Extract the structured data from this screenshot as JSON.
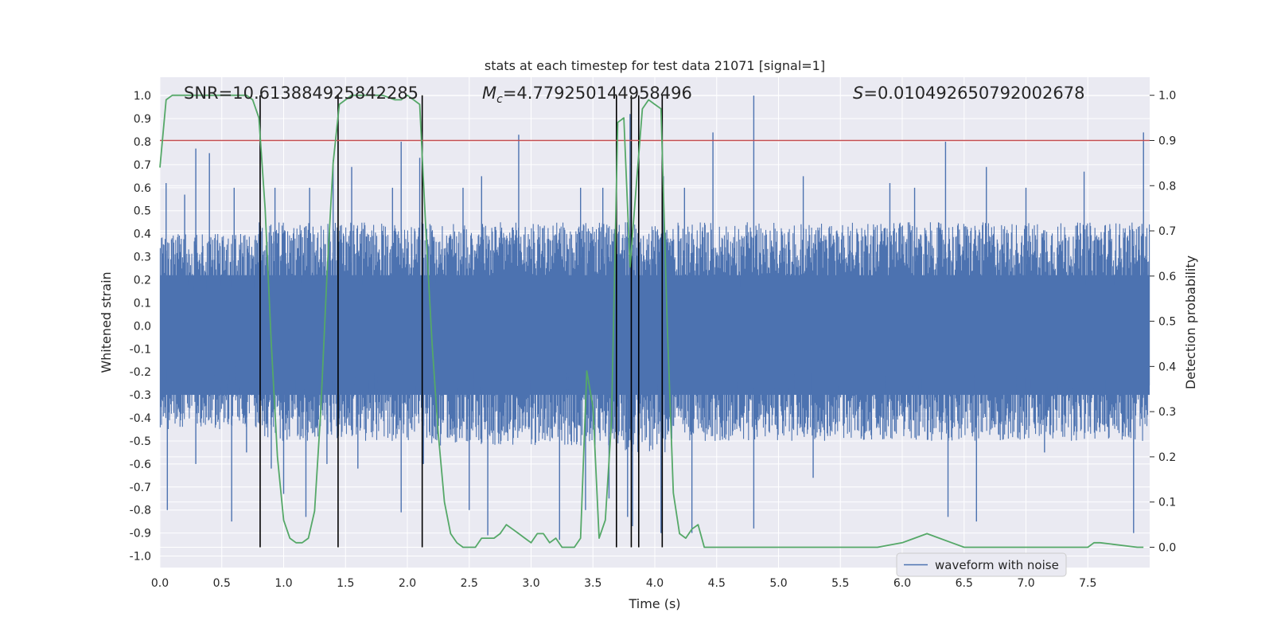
{
  "chart_data": {
    "type": "line",
    "title": "stats at each timestep for test data 21071 [signal=1]",
    "xlabel": "Time (s)",
    "ylabel": "Whitened strain",
    "ylabel_right": "Detection probability",
    "xlim": [
      0.0,
      8.0
    ],
    "ylim": [
      -1.05,
      1.08
    ],
    "ylim_right": [
      -0.045,
      1.04
    ],
    "x_ticks": [
      "0.0",
      "0.5",
      "1.0",
      "1.5",
      "2.0",
      "2.5",
      "3.0",
      "3.5",
      "4.0",
      "4.5",
      "5.0",
      "5.5",
      "6.0",
      "6.5",
      "7.0",
      "7.5"
    ],
    "y_ticks": [
      "1.0",
      "0.9",
      "0.8",
      "0.7",
      "0.6",
      "0.5",
      "0.4",
      "0.3",
      "0.2",
      "0.1",
      "0.0",
      "-0.1",
      "-0.2",
      "-0.3",
      "-0.4",
      "-0.5",
      "-0.6",
      "-0.7",
      "-0.8",
      "-0.9",
      "-1.0"
    ],
    "y_ticks_right": [
      "1.0",
      "0.9",
      "0.8",
      "0.7",
      "0.6",
      "0.5",
      "0.4",
      "0.3",
      "0.2",
      "0.1",
      "0.0"
    ],
    "annotations": {
      "snr": "SNR=10.613884925842285",
      "mc_symbol": "M",
      "mc_sub": "c",
      "mc_value": "=4.779250144958496",
      "s_symbol": "S",
      "s_value": "=0.010492650792002678"
    },
    "legend": {
      "label": "waveform with noise",
      "position": "lower-right"
    },
    "colors": {
      "waveform": "#4c72b0",
      "probability": "#55a868",
      "threshold": "#c44e52",
      "markers": "#000000",
      "background": "#eaeaf2",
      "grid": "#ffffff"
    },
    "waveform_envelope": {
      "note": "approximate per-segment envelope of the noisy whitened strain",
      "segments": [
        {
          "t0": 0.0,
          "t1": 0.8,
          "typ_max": 0.4,
          "typ_min": -0.45,
          "spikes": [
            [
              0.05,
              0.62
            ],
            [
              0.2,
              0.57
            ],
            [
              0.29,
              0.77
            ],
            [
              0.4,
              0.75
            ],
            [
              0.6,
              0.6
            ],
            [
              0.06,
              -0.8
            ],
            [
              0.29,
              -0.6
            ],
            [
              0.58,
              -0.85
            ],
            [
              0.7,
              -0.55
            ]
          ]
        },
        {
          "t0": 0.8,
          "t1": 1.45,
          "typ_max": 0.45,
          "typ_min": -0.5,
          "spikes": [
            [
              0.93,
              0.6
            ],
            [
              1.21,
              0.6
            ],
            [
              1.4,
              0.72
            ],
            [
              0.9,
              -0.62
            ],
            [
              1.0,
              -0.73
            ],
            [
              1.18,
              -0.83
            ],
            [
              1.35,
              -0.6
            ]
          ]
        },
        {
          "t0": 1.45,
          "t1": 2.15,
          "typ_max": 0.45,
          "typ_min": -0.5,
          "spikes": [
            [
              1.55,
              0.69
            ],
            [
              1.88,
              0.6
            ],
            [
              1.95,
              0.8
            ],
            [
              2.1,
              0.73
            ],
            [
              1.6,
              -0.62
            ],
            [
              1.95,
              -0.81
            ],
            [
              2.13,
              -0.6
            ]
          ]
        },
        {
          "t0": 2.15,
          "t1": 3.75,
          "typ_max": 0.45,
          "typ_min": -0.52,
          "spikes": [
            [
              2.45,
              0.6
            ],
            [
              2.6,
              0.65
            ],
            [
              2.9,
              0.83
            ],
            [
              3.4,
              0.6
            ],
            [
              3.58,
              0.6
            ],
            [
              2.5,
              -0.8
            ],
            [
              2.65,
              -0.91
            ],
            [
              3.23,
              -0.93
            ],
            [
              3.44,
              -0.8
            ],
            [
              3.63,
              -0.75
            ]
          ]
        },
        {
          "t0": 3.75,
          "t1": 4.1,
          "typ_max": 0.45,
          "typ_min": -0.55,
          "spikes": [
            [
              3.8,
              0.92
            ],
            [
              3.87,
              0.7
            ],
            [
              4.07,
              0.65
            ],
            [
              3.78,
              -0.83
            ],
            [
              3.82,
              -0.87
            ],
            [
              4.05,
              -0.9
            ]
          ]
        },
        {
          "t0": 4.1,
          "t1": 8.0,
          "typ_max": 0.45,
          "typ_min": -0.5,
          "spikes": [
            [
              4.24,
              0.6
            ],
            [
              4.47,
              0.84
            ],
            [
              4.8,
              1.0
            ],
            [
              5.2,
              0.65
            ],
            [
              5.9,
              0.62
            ],
            [
              6.1,
              0.6
            ],
            [
              6.35,
              0.8
            ],
            [
              6.68,
              0.69
            ],
            [
              7.0,
              0.6
            ],
            [
              7.47,
              0.67
            ],
            [
              7.95,
              0.84
            ],
            [
              4.3,
              -0.9
            ],
            [
              4.8,
              -0.88
            ],
            [
              5.28,
              -0.66
            ],
            [
              6.37,
              -0.83
            ],
            [
              6.6,
              -0.85
            ],
            [
              7.15,
              -0.55
            ],
            [
              7.87,
              -0.9
            ]
          ]
        }
      ]
    },
    "probability_series": {
      "x": [
        0.0,
        0.05,
        0.1,
        0.2,
        0.3,
        0.4,
        0.5,
        0.6,
        0.65,
        0.7,
        0.75,
        0.8,
        0.85,
        0.9,
        0.95,
        1.0,
        1.05,
        1.1,
        1.15,
        1.2,
        1.25,
        1.3,
        1.35,
        1.4,
        1.45,
        1.5,
        1.55,
        1.6,
        1.7,
        1.8,
        1.9,
        1.95,
        2.0,
        2.05,
        2.1,
        2.15,
        2.2,
        2.25,
        2.3,
        2.35,
        2.4,
        2.45,
        2.5,
        2.55,
        2.6,
        2.7,
        2.75,
        2.8,
        2.85,
        2.9,
        2.95,
        3.0,
        3.05,
        3.1,
        3.15,
        3.2,
        3.25,
        3.3,
        3.35,
        3.4,
        3.45,
        3.5,
        3.55,
        3.6,
        3.65,
        3.7,
        3.75,
        3.8,
        3.85,
        3.9,
        3.95,
        4.0,
        4.05,
        4.1,
        4.15,
        4.2,
        4.25,
        4.3,
        4.35,
        4.4,
        4.45,
        4.5,
        5.0,
        5.5,
        5.8,
        6.0,
        6.1,
        6.2,
        6.3,
        6.4,
        6.5,
        7.0,
        7.5,
        7.55,
        7.6,
        7.9,
        7.95
      ],
      "y": [
        0.84,
        0.99,
        1.0,
        1.0,
        1.0,
        1.0,
        1.0,
        1.0,
        1.0,
        1.0,
        0.99,
        0.95,
        0.75,
        0.45,
        0.2,
        0.06,
        0.02,
        0.01,
        0.01,
        0.02,
        0.08,
        0.3,
        0.6,
        0.85,
        0.98,
        0.99,
        1.0,
        1.0,
        1.0,
        1.0,
        0.99,
        0.99,
        1.0,
        0.99,
        0.98,
        0.7,
        0.45,
        0.25,
        0.1,
        0.03,
        0.01,
        0.0,
        0.0,
        0.0,
        0.02,
        0.02,
        0.03,
        0.05,
        0.04,
        0.03,
        0.02,
        0.01,
        0.03,
        0.03,
        0.01,
        0.02,
        0.0,
        0.0,
        0.0,
        0.02,
        0.39,
        0.31,
        0.02,
        0.06,
        0.28,
        0.94,
        0.95,
        0.62,
        0.8,
        0.97,
        0.99,
        0.98,
        0.97,
        0.5,
        0.12,
        0.03,
        0.02,
        0.04,
        0.05,
        0.0,
        0.0,
        0.0,
        0.0,
        0.0,
        0.0,
        0.01,
        0.02,
        0.03,
        0.02,
        0.01,
        0.0,
        0.0,
        0.0,
        0.01,
        0.01,
        0.0,
        0.0
      ]
    },
    "threshold_level": 0.9,
    "detection_markers": [
      0.81,
      1.44,
      2.12,
      3.69,
      3.81,
      3.87,
      4.06
    ]
  }
}
